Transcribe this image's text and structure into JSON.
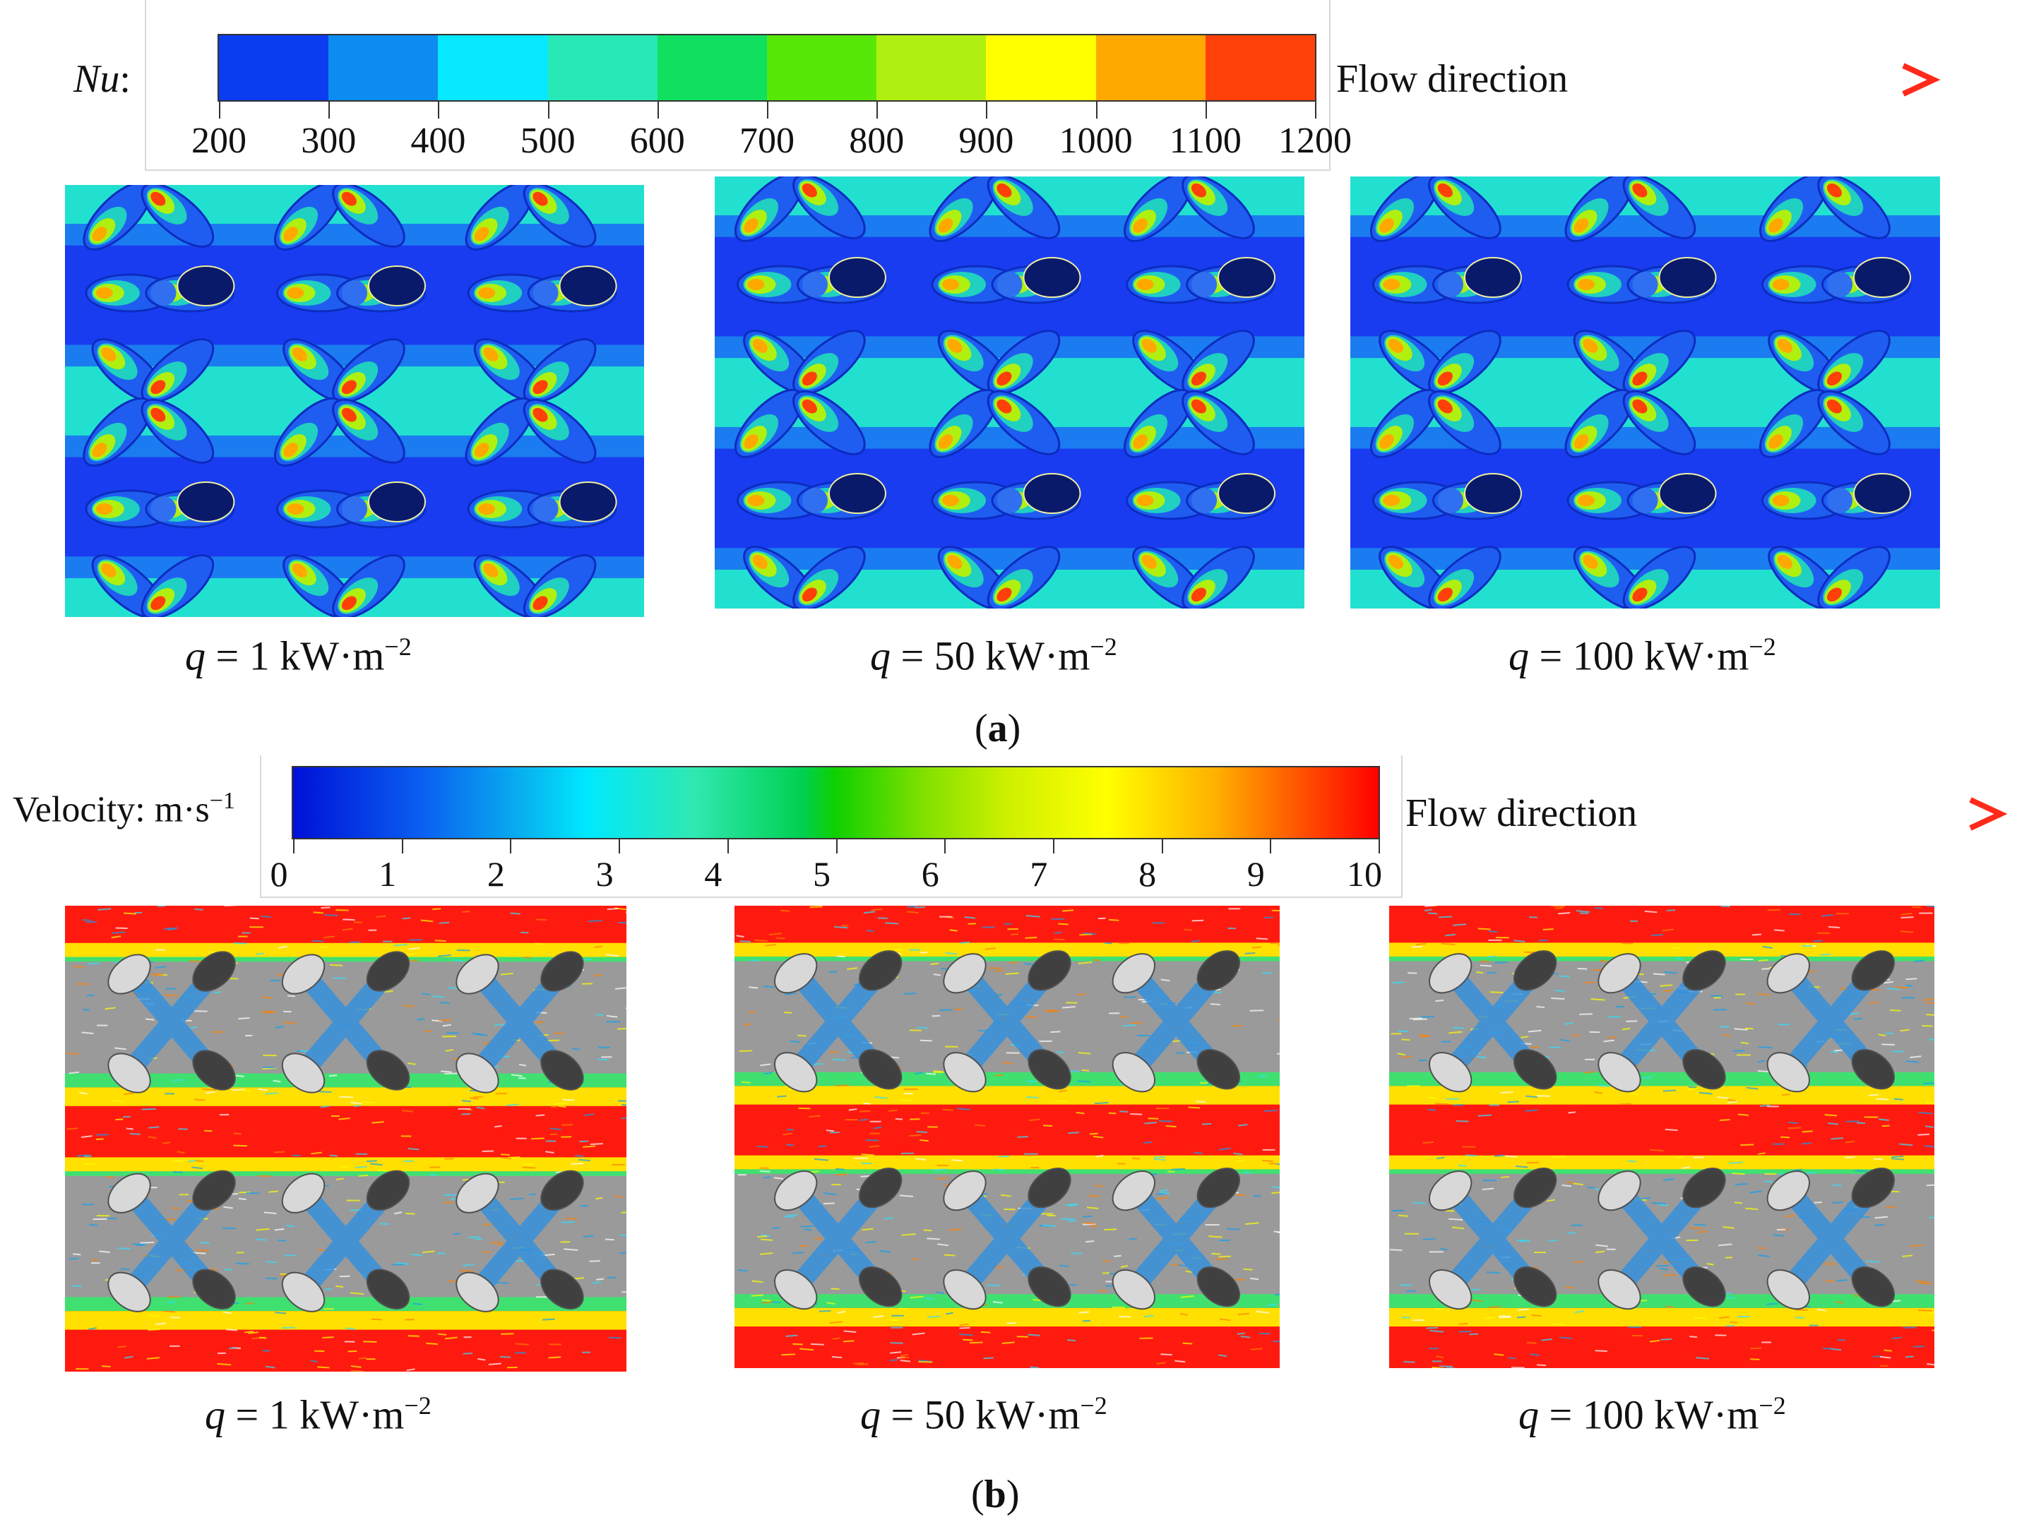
{
  "figure_a": {
    "colorbar": {
      "label": "Nu",
      "label_suffix": ":",
      "ticks": [
        "200",
        "300",
        "400",
        "500",
        "600",
        "700",
        "800",
        "900",
        "1000",
        "1100",
        "1200"
      ],
      "colors": [
        "#0a3cf0",
        "#0c8cf0",
        "#08e8ff",
        "#28e8b8",
        "#10e060",
        "#58e808",
        "#b0f010",
        "#ffff00",
        "#ffa800",
        "#ff4008"
      ]
    },
    "flow_direction": "Flow direction",
    "panels": [
      {
        "q": "q",
        "eq": " = 1 kW·m",
        "exp": "−2"
      },
      {
        "q": "q",
        "eq": " = 50 kW·m",
        "exp": "−2"
      },
      {
        "q": "q",
        "eq": " = 100 kW·m",
        "exp": "−2"
      }
    ],
    "sublabel_open": "(",
    "sublabel_letter": "a",
    "sublabel_close": ")"
  },
  "figure_b": {
    "colorbar": {
      "label": "Velocity: m·s",
      "label_exp": "−1",
      "ticks": [
        "0",
        "1",
        "2",
        "3",
        "4",
        "5",
        "6",
        "7",
        "8",
        "9",
        "10"
      ]
    },
    "flow_direction": "Flow direction",
    "panels": [
      {
        "q": "q",
        "eq": " = 1 kW·m",
        "exp": "−2"
      },
      {
        "q": "q",
        "eq": " = 50 kW·m",
        "exp": "−2"
      },
      {
        "q": "q",
        "eq": " = 100 kW·m",
        "exp": "−2"
      }
    ],
    "sublabel_open": "(",
    "sublabel_letter": "b",
    "sublabel_close": ")"
  },
  "colors": {
    "arrow_start": "#1aa34a",
    "arrow_end": "#ff2a1a",
    "nu_bg_blue": "#1a3cf0",
    "nu_band_cyan": "#20e0d0",
    "vel_red": "#ff1a10",
    "vel_grey": "#9a9a9a"
  }
}
